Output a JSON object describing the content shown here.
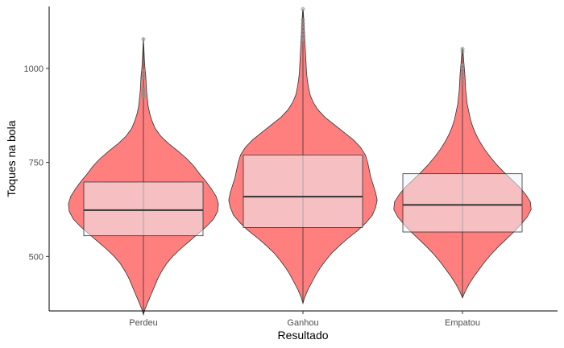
{
  "chart_data": {
    "type": "violin",
    "title": "",
    "xlabel": "Resultado",
    "ylabel": "Toques na bola",
    "ylim": [
      355,
      1165
    ],
    "y_ticks": [
      500,
      750,
      1000
    ],
    "y_tick_labels": [
      "500",
      "750",
      "1000"
    ],
    "categories": [
      "Perdeu",
      "Ganhou",
      "Empatou"
    ],
    "grid": false,
    "legend": "none",
    "colors": {
      "violin_fill": "#ff7f7f",
      "violin_stroke": "#333333",
      "box_fill": "#eef4f8",
      "box_fill_opacity": 0.55,
      "box_stroke": "#333333",
      "median_stroke": "#333333",
      "outlier": "#9e9e9e",
      "axis": "#000000"
    },
    "series": [
      {
        "category": "Perdeu",
        "box": {
          "q1": 555,
          "median": 623,
          "q3": 698
        },
        "whiskers": [
          345,
          1080
        ],
        "outliers": [
          1078,
          995,
          985,
          975,
          945,
          937,
          930,
          925
        ],
        "density": [
          [
            345,
            0.0
          ],
          [
            360,
            0.02
          ],
          [
            380,
            0.06
          ],
          [
            400,
            0.1
          ],
          [
            420,
            0.14
          ],
          [
            440,
            0.18
          ],
          [
            460,
            0.23
          ],
          [
            480,
            0.29
          ],
          [
            500,
            0.37
          ],
          [
            520,
            0.47
          ],
          [
            540,
            0.58
          ],
          [
            560,
            0.69
          ],
          [
            580,
            0.8
          ],
          [
            600,
            0.89
          ],
          [
            620,
            0.94
          ],
          [
            640,
            0.95
          ],
          [
            660,
            0.92
          ],
          [
            680,
            0.86
          ],
          [
            700,
            0.79
          ],
          [
            720,
            0.71
          ],
          [
            740,
            0.64
          ],
          [
            760,
            0.55
          ],
          [
            780,
            0.44
          ],
          [
            800,
            0.32
          ],
          [
            820,
            0.22
          ],
          [
            840,
            0.15
          ],
          [
            860,
            0.11
          ],
          [
            880,
            0.08
          ],
          [
            900,
            0.06
          ],
          [
            920,
            0.05
          ],
          [
            940,
            0.04
          ],
          [
            960,
            0.035
          ],
          [
            980,
            0.03
          ],
          [
            1000,
            0.02
          ],
          [
            1020,
            0.013
          ],
          [
            1040,
            0.009
          ],
          [
            1060,
            0.005
          ],
          [
            1080,
            0.0
          ]
        ]
      },
      {
        "category": "Ganhou",
        "box": {
          "q1": 577,
          "median": 659,
          "q3": 770
        },
        "whiskers": [
          375,
          1158
        ],
        "outliers": [
          1158,
          1130,
          1120,
          1110,
          1100,
          1090,
          1080,
          1075
        ],
        "density": [
          [
            375,
            0.0
          ],
          [
            390,
            0.02
          ],
          [
            410,
            0.06
          ],
          [
            430,
            0.11
          ],
          [
            450,
            0.16
          ],
          [
            470,
            0.22
          ],
          [
            490,
            0.29
          ],
          [
            510,
            0.37
          ],
          [
            530,
            0.47
          ],
          [
            550,
            0.58
          ],
          [
            570,
            0.7
          ],
          [
            590,
            0.8
          ],
          [
            610,
            0.88
          ],
          [
            630,
            0.92
          ],
          [
            650,
            0.94
          ],
          [
            670,
            0.92
          ],
          [
            690,
            0.89
          ],
          [
            710,
            0.86
          ],
          [
            730,
            0.84
          ],
          [
            750,
            0.82
          ],
          [
            770,
            0.79
          ],
          [
            790,
            0.73
          ],
          [
            810,
            0.64
          ],
          [
            830,
            0.52
          ],
          [
            850,
            0.4
          ],
          [
            870,
            0.28
          ],
          [
            890,
            0.19
          ],
          [
            910,
            0.13
          ],
          [
            930,
            0.09
          ],
          [
            950,
            0.07
          ],
          [
            970,
            0.055
          ],
          [
            990,
            0.045
          ],
          [
            1010,
            0.04
          ],
          [
            1030,
            0.035
          ],
          [
            1050,
            0.03
          ],
          [
            1070,
            0.025
          ],
          [
            1090,
            0.02
          ],
          [
            1110,
            0.015
          ],
          [
            1130,
            0.01
          ],
          [
            1150,
            0.005
          ],
          [
            1158,
            0.0
          ]
        ]
      },
      {
        "category": "Empatou",
        "box": {
          "q1": 565,
          "median": 637,
          "q3": 720
        },
        "whiskers": [
          390,
          1055
        ],
        "outliers": [
          1052,
          1045,
          1010,
          1000,
          990,
          980,
          970,
          960
        ],
        "density": [
          [
            390,
            0.0
          ],
          [
            405,
            0.03
          ],
          [
            425,
            0.08
          ],
          [
            445,
            0.14
          ],
          [
            465,
            0.21
          ],
          [
            485,
            0.28
          ],
          [
            505,
            0.36
          ],
          [
            525,
            0.45
          ],
          [
            545,
            0.55
          ],
          [
            565,
            0.65
          ],
          [
            585,
            0.74
          ],
          [
            605,
            0.82
          ],
          [
            625,
            0.87
          ],
          [
            645,
            0.86
          ],
          [
            665,
            0.8
          ],
          [
            685,
            0.72
          ],
          [
            705,
            0.62
          ],
          [
            725,
            0.52
          ],
          [
            745,
            0.43
          ],
          [
            765,
            0.35
          ],
          [
            785,
            0.28
          ],
          [
            805,
            0.22
          ],
          [
            825,
            0.17
          ],
          [
            845,
            0.13
          ],
          [
            865,
            0.1
          ],
          [
            885,
            0.08
          ],
          [
            905,
            0.06
          ],
          [
            925,
            0.05
          ],
          [
            945,
            0.04
          ],
          [
            965,
            0.035
          ],
          [
            985,
            0.03
          ],
          [
            1005,
            0.022
          ],
          [
            1025,
            0.014
          ],
          [
            1045,
            0.007
          ],
          [
            1055,
            0.0
          ]
        ]
      }
    ]
  }
}
